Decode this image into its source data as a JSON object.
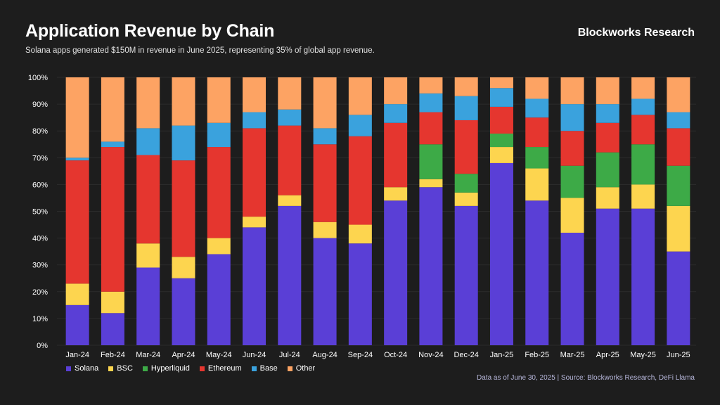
{
  "header": {
    "title": "Application Revenue by Chain",
    "subtitle": "Solana apps generated $150M in revenue in June 2025, representing 35% of global app revenue.",
    "brand": "Blockworks Research"
  },
  "footer": {
    "source": "Data as of June 30, 2025 | Source: Blockworks Research, DeFi Llama"
  },
  "colors": {
    "background": "#1d1d1d",
    "Solana": "#5a3fd6",
    "BSC": "#fdd54f",
    "Hyperliquid": "#3daa47",
    "Ethereum": "#e5362f",
    "Base": "#3aa2dd",
    "Other": "#fda363"
  },
  "chart_data": {
    "type": "bar",
    "stacked": true,
    "title": "Application Revenue by Chain",
    "ylabel": "",
    "xlabel": "",
    "ylim": [
      0,
      100
    ],
    "yticks": [
      "0%",
      "10%",
      "20%",
      "30%",
      "40%",
      "50%",
      "60%",
      "70%",
      "80%",
      "90%",
      "100%"
    ],
    "legend_position": "bottom-left",
    "categories": [
      "Jan-24",
      "Feb-24",
      "Mar-24",
      "Apr-24",
      "May-24",
      "Jun-24",
      "Jul-24",
      "Aug-24",
      "Sep-24",
      "Oct-24",
      "Nov-24",
      "Dec-24",
      "Jan-25",
      "Feb-25",
      "Mar-25",
      "Apr-25",
      "May-25",
      "Jun-25"
    ],
    "series": [
      {
        "name": "Solana",
        "values": [
          15,
          12,
          29,
          25,
          34,
          44,
          52,
          40,
          38,
          54,
          59,
          52,
          68,
          54,
          42,
          51,
          51,
          35
        ]
      },
      {
        "name": "BSC",
        "values": [
          8,
          8,
          9,
          8,
          6,
          4,
          4,
          6,
          7,
          5,
          3,
          5,
          6,
          12,
          13,
          8,
          9,
          17
        ]
      },
      {
        "name": "Hyperliquid",
        "values": [
          0,
          0,
          0,
          0,
          0,
          0,
          0,
          0,
          0,
          0,
          13,
          7,
          5,
          8,
          12,
          13,
          15,
          15
        ]
      },
      {
        "name": "Ethereum",
        "values": [
          46,
          54,
          33,
          36,
          34,
          33,
          26,
          29,
          33,
          24,
          12,
          20,
          10,
          11,
          13,
          11,
          11,
          14
        ]
      },
      {
        "name": "Base",
        "values": [
          1,
          2,
          10,
          13,
          9,
          6,
          6,
          6,
          8,
          7,
          7,
          9,
          7,
          7,
          10,
          7,
          6,
          6
        ]
      },
      {
        "name": "Other",
        "values": [
          30,
          24,
          19,
          18,
          17,
          13,
          12,
          19,
          14,
          10,
          6,
          7,
          4,
          8,
          10,
          10,
          8,
          13
        ]
      }
    ]
  }
}
